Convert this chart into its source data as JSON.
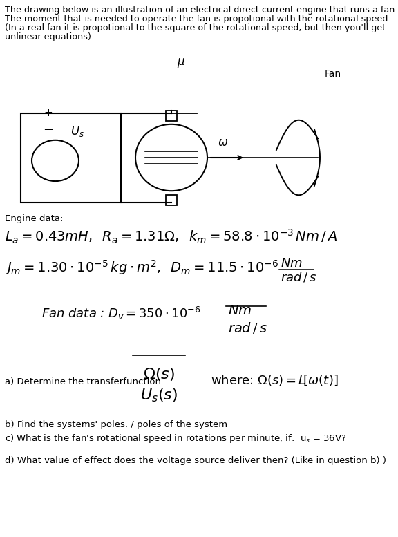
{
  "bg_color": "#ffffff",
  "intro_lines": [
    "The drawing below is an illustration of an electrical direct current engine that runs a fan",
    "The moment that is needed to operate the fan is propotional with the rotational speed.",
    "(In a real fan it is propotional to the square of the rotational speed, but then you'll get",
    "unlinear equations)."
  ],
  "engine_data_label": "Engine data:",
  "question_b": "b) Find the systems' poles. / poles of the system",
  "question_d": "d) What value of effect does the voltage source deliver then? (Like in question b) )"
}
